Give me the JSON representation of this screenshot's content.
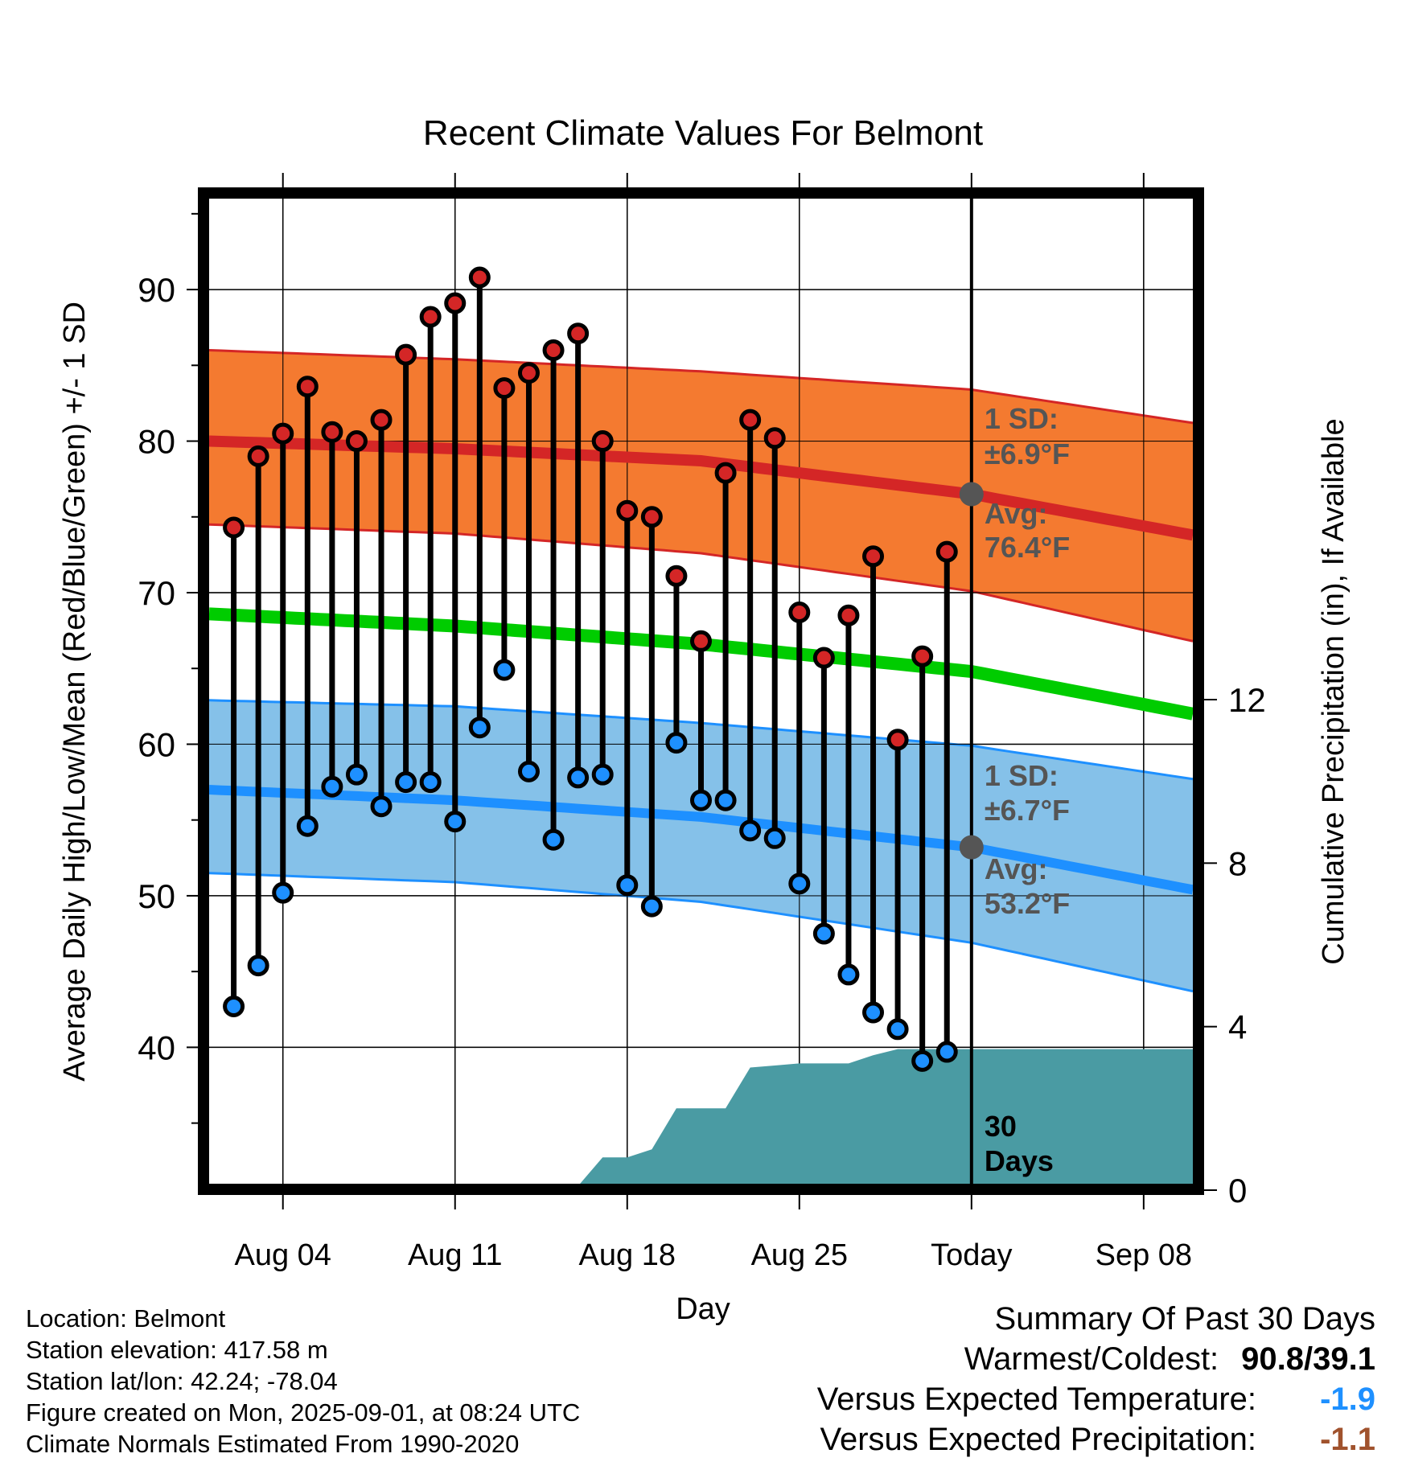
{
  "chart_data": {
    "type": "line",
    "title": "Recent Climate Values For Belmont",
    "xlabel": "Day",
    "ylabel": "Average Daily High/Low/Mean (Red/Blue/Green) +/- 1 SD",
    "y2label": "Cumulative Precipitation (in), If Available",
    "ylim": [
      31,
      96
    ],
    "y2lim": [
      0,
      24
    ],
    "x_day_range": [
      1,
      41
    ],
    "x_ticks": [
      {
        "day": 4,
        "label": "Aug 04"
      },
      {
        "day": 11,
        "label": "Aug 11"
      },
      {
        "day": 18,
        "label": "Aug 18"
      },
      {
        "day": 25,
        "label": "Aug 25"
      },
      {
        "day": 32,
        "label": "Today"
      },
      {
        "day": 39,
        "label": "Sep 08"
      }
    ],
    "y_ticks": [
      40,
      50,
      60,
      70,
      80,
      90
    ],
    "y2_ticks": [
      0,
      4,
      8,
      12
    ],
    "grid": true,
    "today_day": 32,
    "normals": {
      "high_avg": [
        [
          1,
          80.0
        ],
        [
          11,
          79.5
        ],
        [
          21,
          78.7
        ],
        [
          32,
          76.5
        ],
        [
          41,
          73.8
        ]
      ],
      "high_sd_upper": [
        [
          1,
          86.0
        ],
        [
          11,
          85.4
        ],
        [
          21,
          84.6
        ],
        [
          32,
          83.4
        ],
        [
          41,
          81.2
        ]
      ],
      "high_sd_lower": [
        [
          1,
          74.5
        ],
        [
          11,
          73.9
        ],
        [
          21,
          72.6
        ],
        [
          32,
          70.1
        ],
        [
          41,
          66.8
        ]
      ],
      "mean": [
        [
          1,
          68.6
        ],
        [
          11,
          67.8
        ],
        [
          21,
          66.6
        ],
        [
          32,
          64.8
        ],
        [
          41,
          62.0
        ]
      ],
      "low_avg": [
        [
          1,
          57.0
        ],
        [
          11,
          56.3
        ],
        [
          21,
          55.2
        ],
        [
          32,
          53.2
        ],
        [
          41,
          50.4
        ]
      ],
      "low_sd_upper": [
        [
          1,
          62.9
        ],
        [
          11,
          62.5
        ],
        [
          21,
          61.4
        ],
        [
          32,
          59.9
        ],
        [
          41,
          57.7
        ]
      ],
      "low_sd_lower": [
        [
          1,
          51.5
        ],
        [
          11,
          50.9
        ],
        [
          21,
          49.6
        ],
        [
          32,
          46.9
        ],
        [
          41,
          43.7
        ]
      ]
    },
    "daily_days": [
      2,
      3,
      4,
      5,
      6,
      7,
      8,
      9,
      10,
      11,
      12,
      13,
      14,
      15,
      16,
      17,
      18,
      19,
      20,
      21,
      22,
      23,
      24,
      25,
      26,
      27,
      28,
      29,
      30,
      31
    ],
    "daily_highs": [
      74.3,
      79.0,
      80.5,
      83.6,
      80.6,
      80.0,
      81.4,
      85.7,
      88.2,
      89.1,
      90.8,
      83.5,
      84.5,
      86.0,
      87.1,
      80.0,
      75.4,
      75.0,
      71.1,
      66.8,
      77.9,
      81.4,
      80.2,
      68.7,
      65.7,
      68.5,
      72.4,
      60.3,
      65.8,
      72.7
    ],
    "daily_lows": [
      42.7,
      45.4,
      50.2,
      54.6,
      57.2,
      58.0,
      55.9,
      57.5,
      57.5,
      54.9,
      61.1,
      64.9,
      58.2,
      53.7,
      57.8,
      58.0,
      50.7,
      49.3,
      60.1,
      56.3,
      56.3,
      54.3,
      53.8,
      50.8,
      47.5,
      44.8,
      42.3,
      41.2,
      39.1,
      39.7
    ],
    "precip_cumulative": [
      [
        1,
        0
      ],
      [
        10,
        0
      ],
      [
        11,
        0
      ],
      [
        12,
        0
      ],
      [
        13,
        0.05
      ],
      [
        14,
        0.1
      ],
      [
        15,
        0.1
      ],
      [
        16,
        0.1
      ],
      [
        17,
        0.8
      ],
      [
        18,
        0.8
      ],
      [
        19,
        1.0
      ],
      [
        20,
        2.0
      ],
      [
        21,
        2.0
      ],
      [
        22,
        2.0
      ],
      [
        23,
        3.0
      ],
      [
        24,
        3.05
      ],
      [
        25,
        3.1
      ],
      [
        26,
        3.1
      ],
      [
        27,
        3.1
      ],
      [
        28,
        3.3
      ],
      [
        29,
        3.45
      ],
      [
        30,
        3.45
      ],
      [
        31,
        3.45
      ],
      [
        32,
        3.45
      ],
      [
        41,
        3.45
      ]
    ],
    "annotations": {
      "high_sd_line1": "1 SD:",
      "high_sd_line2": "±6.9°F",
      "high_avg_line1": "Avg:",
      "high_avg_line2": "76.4°F",
      "low_sd_line1": "1 SD:",
      "low_sd_line2": "±6.7°F",
      "low_avg_line1": "Avg:",
      "low_avg_line2": "53.2°F",
      "precip_line1": "30",
      "precip_line2": "Days"
    },
    "colors": {
      "high_band": "#f47a30",
      "high_line": "#d42626",
      "mean_line": "#00cc00",
      "low_band": "#85c1e9",
      "low_line": "#1e90ff",
      "precip_fill": "#4a9ba3",
      "high_marker": "#d42626",
      "low_marker": "#1e90ff",
      "annotation_text": "#555555"
    }
  },
  "info": {
    "location": "Location: Belmont",
    "elevation": "Station elevation: 417.58 m",
    "latlon": "Station lat/lon: 42.24; -78.04",
    "created": "Figure created on Mon, 2025-09-01, at 08:24 UTC",
    "normals": "Climate Normals Estimated From 1990-2020"
  },
  "summary": {
    "title": "Summary Of Past 30 Days",
    "warmest_label": "Warmest/Coldest:",
    "warmest_value": "90.8/39.1",
    "temp_label": "Versus Expected Temperature:",
    "temp_value": "-1.9",
    "temp_color": "#1e90ff",
    "precip_label": "Versus Expected Precipitation:",
    "precip_value": "-1.1",
    "precip_color": "#a0522d"
  }
}
